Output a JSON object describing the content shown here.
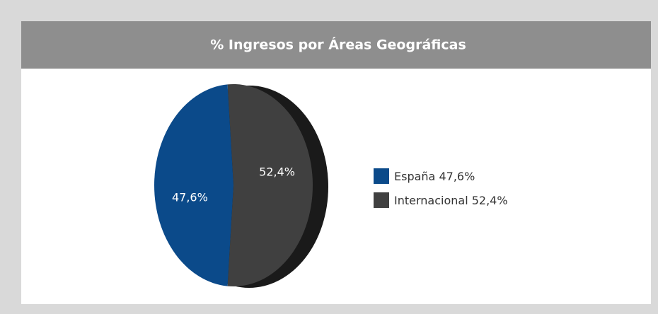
{
  "chart_data": {
    "type": "pie",
    "title": "% Ingresos por Áreas Geográficas",
    "categories": [
      "España",
      "Internacional"
    ],
    "values": [
      47.6,
      52.4
    ],
    "value_labels": [
      "47,6%",
      "52,4%"
    ],
    "colors": [
      "#0b4a8a",
      "#404040"
    ],
    "legend": "right"
  }
}
